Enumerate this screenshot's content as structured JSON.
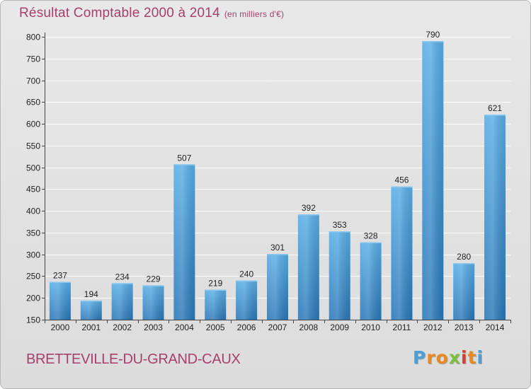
{
  "header": {
    "title": "Résultat Comptable 2000 à 2014",
    "subtitle": "(en milliers d'€)"
  },
  "footer": {
    "city": "BRETTEVILLE-DU-GRAND-CAUX",
    "logo_text": "Proxiti",
    "logo_letters": [
      {
        "ch": "P",
        "color": "#4a9fd8"
      },
      {
        "ch": "r",
        "color": "#e8891f"
      },
      {
        "ch": "o",
        "color": "#e8891f"
      },
      {
        "ch": "x",
        "color": "#7bbf3a"
      },
      {
        "ch": "i",
        "color": "#d43c3c"
      },
      {
        "ch": "t",
        "color": "#e8891f"
      },
      {
        "ch": "i",
        "color": "#4a9fd8"
      }
    ]
  },
  "colors": {
    "title": "#a8406a",
    "bar_top": "#5aaee6",
    "bar_bottom": "#2a78b8",
    "grid": "#ffffff"
  },
  "chart_data": {
    "type": "bar",
    "title": "Résultat Comptable 2000 à 2014",
    "subtitle": "(en milliers d'€)",
    "xlabel": "",
    "ylabel": "",
    "categories": [
      "2000",
      "2001",
      "2002",
      "2003",
      "2004",
      "2005",
      "2006",
      "2007",
      "2008",
      "2009",
      "2010",
      "2011",
      "2012",
      "2013",
      "2014"
    ],
    "values": [
      237,
      194,
      234,
      229,
      507,
      219,
      240,
      301,
      392,
      353,
      328,
      456,
      790,
      280,
      621
    ],
    "ylim": [
      150,
      800
    ],
    "yticks": [
      150,
      200,
      250,
      300,
      350,
      400,
      450,
      500,
      550,
      600,
      650,
      700,
      750,
      800
    ],
    "grid": true
  }
}
